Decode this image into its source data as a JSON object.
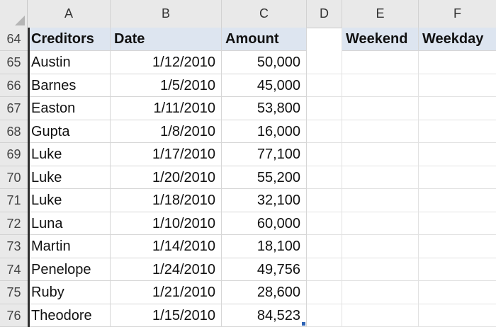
{
  "columns": [
    "A",
    "B",
    "C",
    "D",
    "E",
    "F"
  ],
  "header_row": {
    "row_number": "64",
    "creditors": "Creditors",
    "date": "Date",
    "amount": "Amount",
    "weekend": "Weekend",
    "weekday": "Weekday"
  },
  "rows": [
    {
      "row": "65",
      "name": "Austin",
      "date": "1/12/2010",
      "amount": "50,000"
    },
    {
      "row": "66",
      "name": "Barnes",
      "date": "1/5/2010",
      "amount": "45,000"
    },
    {
      "row": "67",
      "name": "Easton",
      "date": "1/11/2010",
      "amount": "53,800"
    },
    {
      "row": "68",
      "name": "Gupta",
      "date": "1/8/2010",
      "amount": "16,000"
    },
    {
      "row": "69",
      "name": "Luke",
      "date": "1/17/2010",
      "amount": "77,100"
    },
    {
      "row": "70",
      "name": "Luke",
      "date": "1/20/2010",
      "amount": "55,200"
    },
    {
      "row": "71",
      "name": "Luke",
      "date": "1/18/2010",
      "amount": "32,100"
    },
    {
      "row": "72",
      "name": "Luna",
      "date": "1/10/2010",
      "amount": "60,000"
    },
    {
      "row": "73",
      "name": "Martin",
      "date": "1/14/2010",
      "amount": "18,100"
    },
    {
      "row": "74",
      "name": "Penelope",
      "date": "1/24/2010",
      "amount": "49,756"
    },
    {
      "row": "75",
      "name": "Ruby",
      "date": "1/21/2010",
      "amount": "28,600"
    },
    {
      "row": "76",
      "name": "Theodore",
      "date": "1/15/2010",
      "amount": "84,523"
    }
  ],
  "colors": {
    "header_fill": "#dde5f0",
    "grid": "#d6d6d6",
    "selection": "#2f2f2f",
    "fill_handle": "#2e63b5"
  }
}
